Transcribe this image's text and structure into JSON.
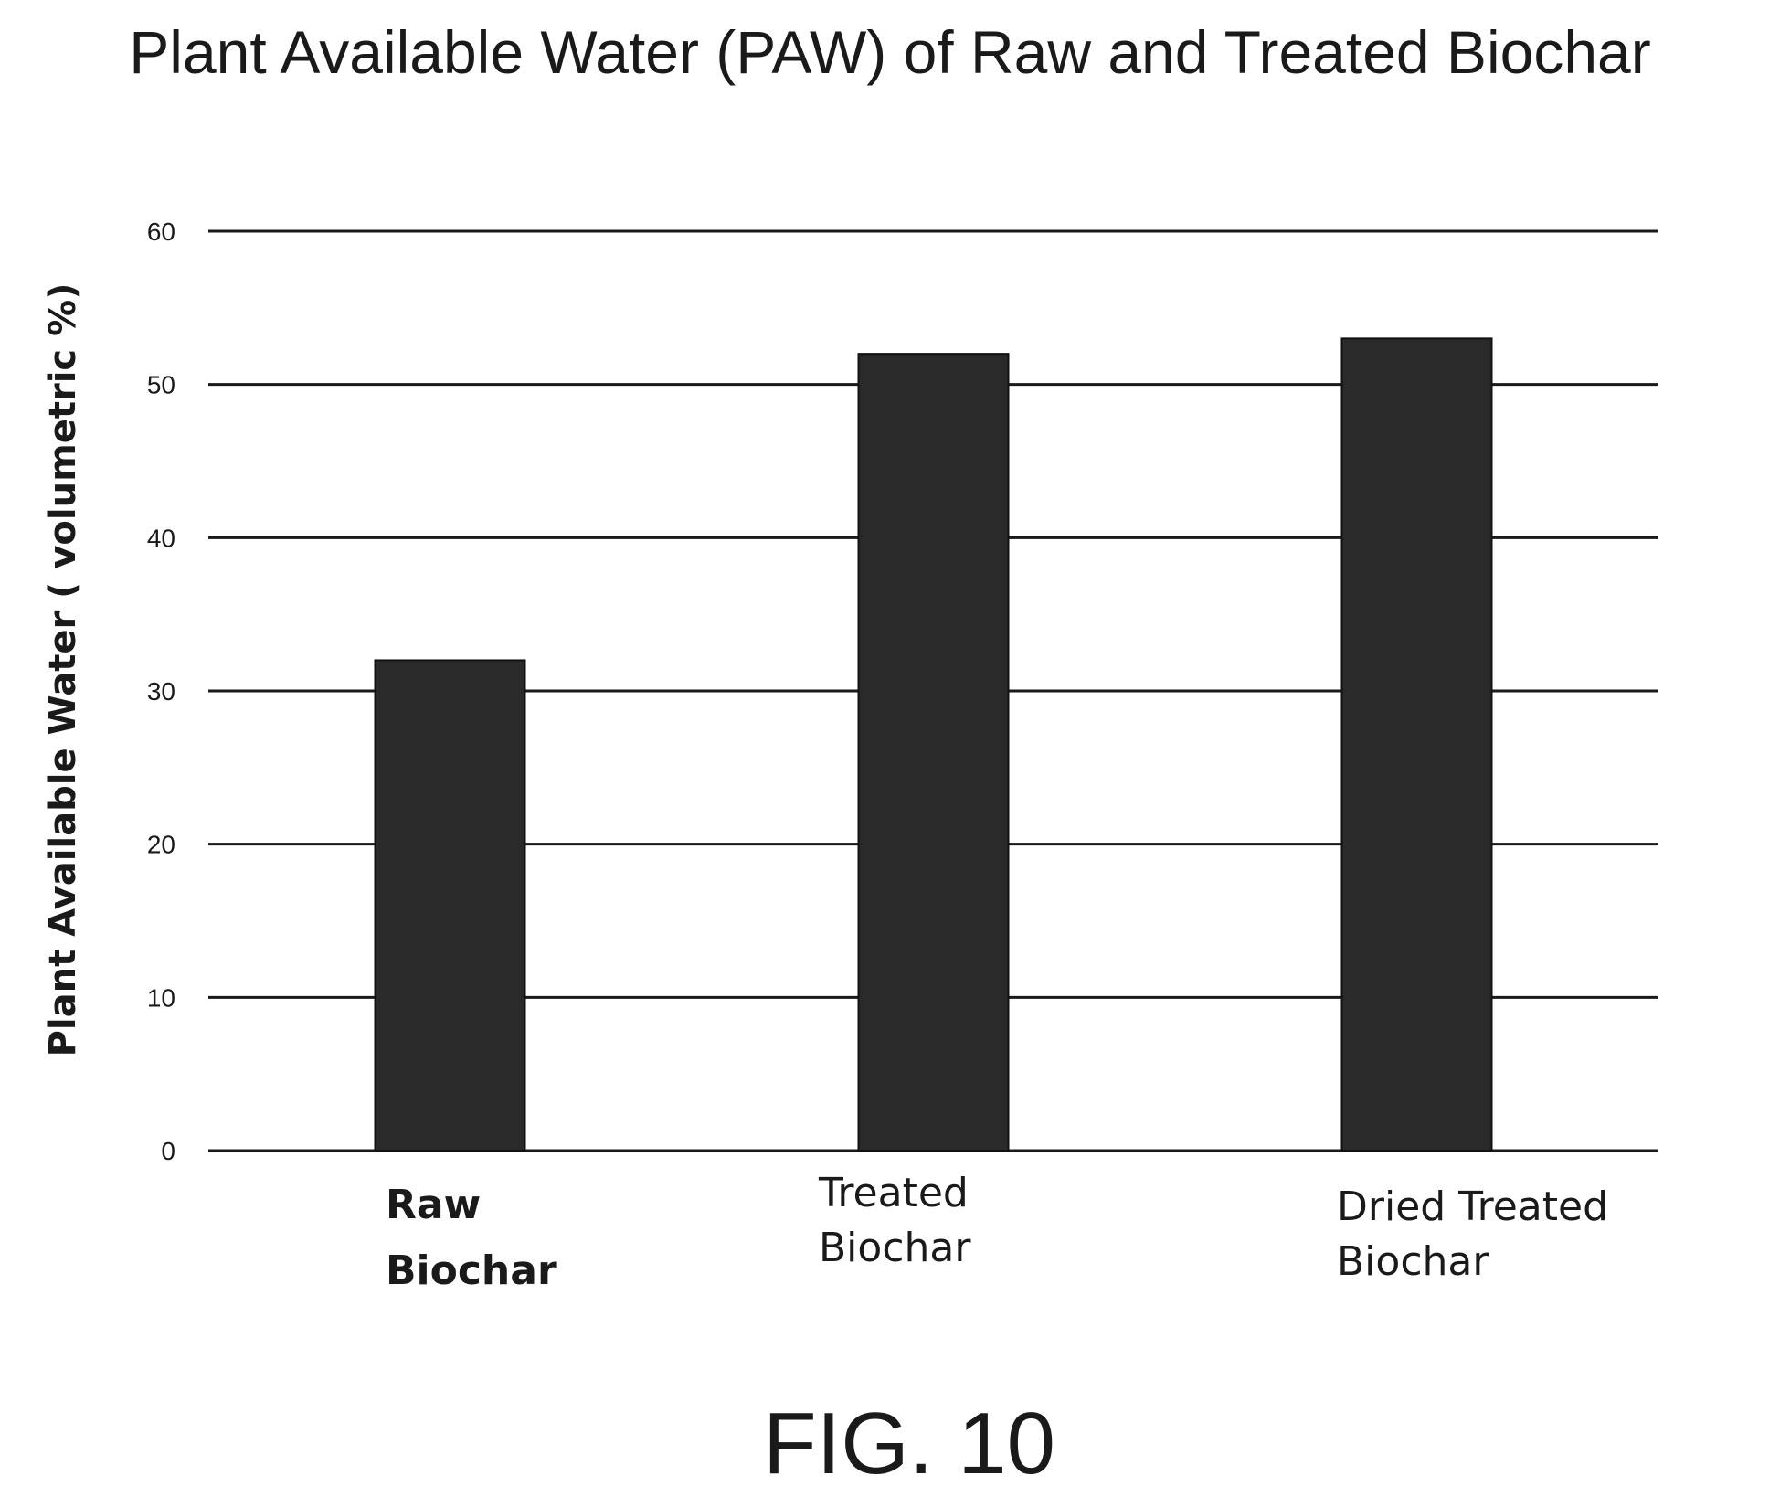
{
  "chart_data": {
    "type": "bar",
    "title": "Plant Available Water (PAW) of Raw and Treated Biochar",
    "ylabel": "Plant Available Water ( volumetric %)",
    "xlabel": "",
    "categories": [
      "Raw Biochar",
      "Treated Biochar",
      "Dried Treated Biochar"
    ],
    "category_lines": [
      [
        "Raw",
        "Biochar"
      ],
      [
        "Treated",
        "Biochar"
      ],
      [
        "Dried Treated",
        "Biochar"
      ]
    ],
    "category_bold": [
      true,
      false,
      false
    ],
    "values": [
      32,
      52,
      53
    ],
    "ylim": [
      0,
      60
    ],
    "yticks": [
      0,
      10,
      20,
      30,
      40,
      50,
      60
    ],
    "ytick_labels": [
      "0",
      "10",
      "20",
      "30",
      "40",
      "50",
      "60"
    ],
    "grid": true,
    "legend": "none",
    "bar_color": "#2a2a2a"
  },
  "figure_label": "FIG. 10"
}
